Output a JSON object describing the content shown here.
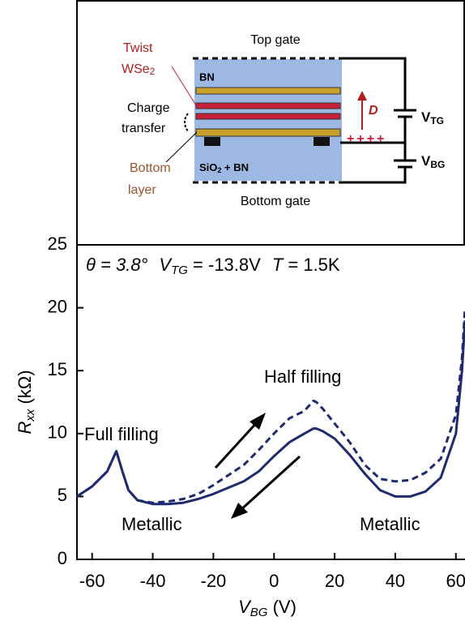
{
  "chart_data": {
    "type": "line",
    "header": {
      "theta": "θ = 3.8°",
      "v": "V",
      "v_sub": "TG",
      "v_rest": " = -13.8V",
      "t": "T",
      "t_rest": " = 1.5K"
    },
    "x_label": {
      "main": "V",
      "sub": "BG",
      "unit": " (V)"
    },
    "y_label": {
      "main": "R",
      "sub": "xx",
      "unit": " (kΩ)"
    },
    "annotations": [
      "Full filling",
      "Half filling",
      "Metallic",
      "Metallic"
    ],
    "x": [
      -65,
      -60,
      -55,
      -52,
      -50,
      -48,
      -45,
      -40,
      -35,
      -30,
      -25,
      -20,
      -15,
      -10,
      -5,
      0,
      5,
      10,
      13,
      14,
      16,
      20,
      25,
      30,
      35,
      40,
      45,
      50,
      55,
      60,
      62,
      63
    ],
    "series": [
      {
        "color": "#1f2b6e",
        "dash": false,
        "values": [
          5.0,
          5.8,
          7.0,
          8.6,
          7.0,
          5.5,
          4.7,
          4.4,
          4.4,
          4.5,
          4.8,
          5.2,
          5.7,
          6.2,
          7.0,
          8.2,
          9.3,
          10.0,
          10.4,
          10.4,
          10.2,
          9.6,
          8.3,
          6.8,
          5.5,
          5.0,
          5.0,
          5.4,
          6.5,
          10.0,
          15.0,
          19.0
        ]
      },
      {
        "color": "#1f2b6e",
        "dash": true,
        "values": [
          5.0,
          5.8,
          7.0,
          8.6,
          7.0,
          5.5,
          4.7,
          4.5,
          4.6,
          4.8,
          5.2,
          5.9,
          6.7,
          7.5,
          8.7,
          10.0,
          11.2,
          11.8,
          12.6,
          12.5,
          12.0,
          10.8,
          9.3,
          7.5,
          6.4,
          6.2,
          6.3,
          6.9,
          8.0,
          11.5,
          16.0,
          20.0
        ]
      }
    ],
    "xlim": [
      -65,
      63
    ],
    "xticks": [
      -60,
      -40,
      -20,
      0,
      20,
      40,
      60
    ],
    "ylim": [
      0,
      25
    ],
    "yticks": [
      0,
      5,
      10,
      15,
      20,
      25
    ]
  },
  "inset": {
    "top_gate": "Top gate",
    "twist": "Twist",
    "wse": "WSe",
    "wse_sub": "2",
    "bn": "BN",
    "charge": "Charge",
    "transfer": "transfer",
    "bottom": "Bottom",
    "layer": "layer",
    "sio": "SiO",
    "sio_sub": "2",
    "sio_rest": " + BN",
    "bottom_gate": "Bottom gate",
    "d": "D",
    "vtg": "V",
    "vtg_sub": "TG",
    "vbg": "V",
    "vbg_sub": "BG",
    "plus": "++++"
  }
}
